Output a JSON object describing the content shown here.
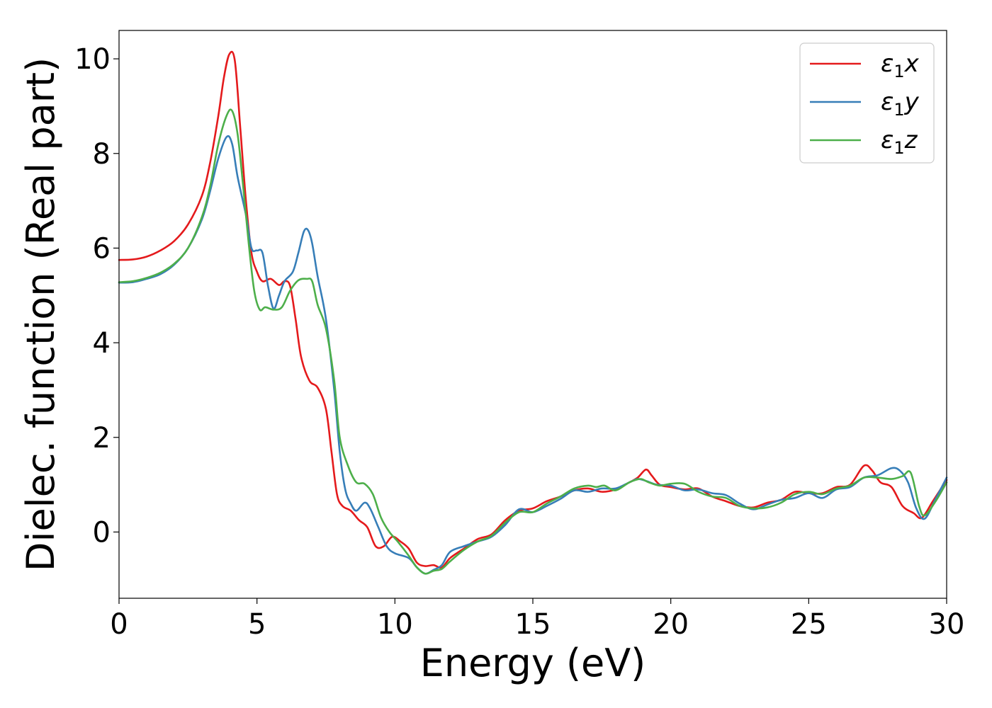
{
  "chart_data": {
    "type": "line",
    "xlabel": "Energy (eV)",
    "ylabel": "Dielec. function (Real part)",
    "xlim": [
      0,
      30
    ],
    "ylim": [
      -1.4,
      10.6
    ],
    "xticks": [
      0,
      5,
      10,
      15,
      20,
      25,
      30
    ],
    "yticks": [
      0,
      2,
      4,
      6,
      8,
      10
    ],
    "grid": false,
    "legend_position": "top-right",
    "series": [
      {
        "name": "ε₁x",
        "legend": {
          "base": "ε",
          "sub": "1",
          "suffix": "x"
        },
        "color": "#e41a1c",
        "points": [
          [
            0,
            5.75
          ],
          [
            0.5,
            5.76
          ],
          [
            1,
            5.82
          ],
          [
            1.5,
            5.95
          ],
          [
            2,
            6.15
          ],
          [
            2.5,
            6.5
          ],
          [
            3,
            7.1
          ],
          [
            3.3,
            7.8
          ],
          [
            3.6,
            8.8
          ],
          [
            3.8,
            9.6
          ],
          [
            4.0,
            10.1
          ],
          [
            4.2,
            9.95
          ],
          [
            4.4,
            8.5
          ],
          [
            4.6,
            7.0
          ],
          [
            4.8,
            5.9
          ],
          [
            5.0,
            5.5
          ],
          [
            5.2,
            5.3
          ],
          [
            5.5,
            5.35
          ],
          [
            5.8,
            5.22
          ],
          [
            6.0,
            5.3
          ],
          [
            6.2,
            5.2
          ],
          [
            6.4,
            4.5
          ],
          [
            6.6,
            3.7
          ],
          [
            6.9,
            3.2
          ],
          [
            7.2,
            3.05
          ],
          [
            7.5,
            2.6
          ],
          [
            7.7,
            1.7
          ],
          [
            7.9,
            0.8
          ],
          [
            8.1,
            0.55
          ],
          [
            8.4,
            0.45
          ],
          [
            8.7,
            0.25
          ],
          [
            9.0,
            0.1
          ],
          [
            9.3,
            -0.3
          ],
          [
            9.6,
            -0.3
          ],
          [
            9.9,
            -0.1
          ],
          [
            10.2,
            -0.2
          ],
          [
            10.5,
            -0.35
          ],
          [
            10.8,
            -0.65
          ],
          [
            11.1,
            -0.72
          ],
          [
            11.4,
            -0.7
          ],
          [
            11.7,
            -0.75
          ],
          [
            12.0,
            -0.55
          ],
          [
            12.5,
            -0.35
          ],
          [
            13.0,
            -0.15
          ],
          [
            13.5,
            -0.05
          ],
          [
            14.0,
            0.25
          ],
          [
            14.5,
            0.45
          ],
          [
            15.0,
            0.5
          ],
          [
            15.5,
            0.65
          ],
          [
            16.0,
            0.75
          ],
          [
            16.5,
            0.88
          ],
          [
            17.0,
            0.92
          ],
          [
            17.5,
            0.85
          ],
          [
            18.0,
            0.9
          ],
          [
            18.5,
            1.05
          ],
          [
            18.8,
            1.15
          ],
          [
            19.1,
            1.32
          ],
          [
            19.3,
            1.2
          ],
          [
            19.6,
            1.0
          ],
          [
            20.0,
            0.95
          ],
          [
            20.5,
            0.9
          ],
          [
            21.0,
            0.92
          ],
          [
            21.5,
            0.75
          ],
          [
            22.0,
            0.65
          ],
          [
            22.5,
            0.55
          ],
          [
            23.0,
            0.52
          ],
          [
            23.5,
            0.62
          ],
          [
            24.0,
            0.68
          ],
          [
            24.5,
            0.85
          ],
          [
            25.0,
            0.82
          ],
          [
            25.5,
            0.82
          ],
          [
            26.0,
            0.95
          ],
          [
            26.5,
            1.0
          ],
          [
            27.0,
            1.4
          ],
          [
            27.3,
            1.3
          ],
          [
            27.6,
            1.05
          ],
          [
            28.0,
            0.95
          ],
          [
            28.4,
            0.55
          ],
          [
            28.8,
            0.4
          ],
          [
            29.1,
            0.3
          ],
          [
            29.5,
            0.65
          ],
          [
            30.0,
            1.1
          ]
        ]
      },
      {
        "name": "ε₁y",
        "legend": {
          "base": "ε",
          "sub": "1",
          "suffix": "y"
        },
        "color": "#377eb8",
        "points": [
          [
            0,
            5.27
          ],
          [
            0.5,
            5.28
          ],
          [
            1,
            5.35
          ],
          [
            1.5,
            5.45
          ],
          [
            2,
            5.65
          ],
          [
            2.5,
            6.0
          ],
          [
            3,
            6.6
          ],
          [
            3.3,
            7.2
          ],
          [
            3.6,
            7.9
          ],
          [
            3.9,
            8.35
          ],
          [
            4.1,
            8.2
          ],
          [
            4.3,
            7.5
          ],
          [
            4.6,
            6.7
          ],
          [
            4.8,
            6.0
          ],
          [
            5.0,
            5.95
          ],
          [
            5.2,
            5.9
          ],
          [
            5.4,
            5.2
          ],
          [
            5.6,
            4.72
          ],
          [
            5.8,
            5.0
          ],
          [
            6.0,
            5.3
          ],
          [
            6.3,
            5.5
          ],
          [
            6.5,
            5.9
          ],
          [
            6.7,
            6.35
          ],
          [
            6.85,
            6.38
          ],
          [
            7.0,
            6.1
          ],
          [
            7.2,
            5.4
          ],
          [
            7.5,
            4.5
          ],
          [
            7.8,
            3.0
          ],
          [
            8.0,
            1.7
          ],
          [
            8.2,
            0.9
          ],
          [
            8.4,
            0.6
          ],
          [
            8.6,
            0.45
          ],
          [
            8.9,
            0.62
          ],
          [
            9.1,
            0.5
          ],
          [
            9.4,
            0.1
          ],
          [
            9.7,
            -0.3
          ],
          [
            10.0,
            -0.45
          ],
          [
            10.5,
            -0.55
          ],
          [
            10.8,
            -0.75
          ],
          [
            11.1,
            -0.88
          ],
          [
            11.4,
            -0.8
          ],
          [
            11.7,
            -0.7
          ],
          [
            12.0,
            -0.42
          ],
          [
            12.5,
            -0.3
          ],
          [
            13.0,
            -0.2
          ],
          [
            13.5,
            -0.1
          ],
          [
            14.0,
            0.15
          ],
          [
            14.5,
            0.48
          ],
          [
            15.0,
            0.42
          ],
          [
            15.5,
            0.55
          ],
          [
            16.0,
            0.7
          ],
          [
            16.5,
            0.88
          ],
          [
            17.0,
            0.85
          ],
          [
            17.5,
            0.92
          ],
          [
            18.0,
            0.92
          ],
          [
            18.5,
            1.05
          ],
          [
            18.8,
            1.12
          ],
          [
            19.1,
            1.08
          ],
          [
            19.5,
            1.0
          ],
          [
            20.0,
            0.98
          ],
          [
            20.5,
            0.88
          ],
          [
            21.0,
            0.9
          ],
          [
            21.5,
            0.82
          ],
          [
            22.0,
            0.78
          ],
          [
            22.5,
            0.6
          ],
          [
            23.0,
            0.48
          ],
          [
            23.5,
            0.58
          ],
          [
            24.0,
            0.68
          ],
          [
            24.5,
            0.72
          ],
          [
            25.0,
            0.82
          ],
          [
            25.5,
            0.72
          ],
          [
            26.0,
            0.9
          ],
          [
            26.5,
            0.95
          ],
          [
            27.0,
            1.15
          ],
          [
            27.5,
            1.2
          ],
          [
            28.0,
            1.35
          ],
          [
            28.3,
            1.3
          ],
          [
            28.6,
            1.05
          ],
          [
            28.9,
            0.5
          ],
          [
            29.2,
            0.28
          ],
          [
            29.6,
            0.7
          ],
          [
            30.0,
            1.15
          ]
        ]
      },
      {
        "name": "ε₁z",
        "legend": {
          "base": "ε",
          "sub": "1",
          "suffix": "z"
        },
        "color": "#4daf4a",
        "points": [
          [
            0,
            5.28
          ],
          [
            0.5,
            5.3
          ],
          [
            1,
            5.37
          ],
          [
            1.5,
            5.48
          ],
          [
            2,
            5.67
          ],
          [
            2.5,
            6.0
          ],
          [
            3,
            6.65
          ],
          [
            3.3,
            7.3
          ],
          [
            3.6,
            8.2
          ],
          [
            3.9,
            8.8
          ],
          [
            4.1,
            8.9
          ],
          [
            4.3,
            8.4
          ],
          [
            4.5,
            7.3
          ],
          [
            4.7,
            6.1
          ],
          [
            4.9,
            5.1
          ],
          [
            5.1,
            4.7
          ],
          [
            5.3,
            4.75
          ],
          [
            5.6,
            4.7
          ],
          [
            5.9,
            4.75
          ],
          [
            6.2,
            5.1
          ],
          [
            6.5,
            5.32
          ],
          [
            6.8,
            5.35
          ],
          [
            7.0,
            5.3
          ],
          [
            7.2,
            4.8
          ],
          [
            7.5,
            4.3
          ],
          [
            7.8,
            3.2
          ],
          [
            8.0,
            2.0
          ],
          [
            8.3,
            1.4
          ],
          [
            8.6,
            1.05
          ],
          [
            8.9,
            1.02
          ],
          [
            9.2,
            0.8
          ],
          [
            9.5,
            0.3
          ],
          [
            9.8,
            0.0
          ],
          [
            10.1,
            -0.2
          ],
          [
            10.5,
            -0.5
          ],
          [
            10.8,
            -0.75
          ],
          [
            11.1,
            -0.88
          ],
          [
            11.4,
            -0.82
          ],
          [
            11.7,
            -0.78
          ],
          [
            12.0,
            -0.62
          ],
          [
            12.5,
            -0.38
          ],
          [
            13.0,
            -0.2
          ],
          [
            13.5,
            -0.08
          ],
          [
            14.0,
            0.2
          ],
          [
            14.5,
            0.42
          ],
          [
            15.0,
            0.42
          ],
          [
            15.5,
            0.6
          ],
          [
            16.0,
            0.75
          ],
          [
            16.5,
            0.92
          ],
          [
            17.0,
            0.98
          ],
          [
            17.3,
            0.95
          ],
          [
            17.6,
            0.98
          ],
          [
            18.0,
            0.88
          ],
          [
            18.5,
            1.05
          ],
          [
            18.9,
            1.12
          ],
          [
            19.2,
            1.05
          ],
          [
            19.6,
            0.98
          ],
          [
            20.0,
            1.02
          ],
          [
            20.5,
            1.02
          ],
          [
            21.0,
            0.85
          ],
          [
            21.5,
            0.75
          ],
          [
            22.0,
            0.72
          ],
          [
            22.5,
            0.55
          ],
          [
            23.0,
            0.5
          ],
          [
            23.5,
            0.52
          ],
          [
            24.0,
            0.62
          ],
          [
            24.5,
            0.8
          ],
          [
            25.0,
            0.85
          ],
          [
            25.5,
            0.8
          ],
          [
            26.0,
            0.92
          ],
          [
            26.5,
            0.98
          ],
          [
            27.0,
            1.15
          ],
          [
            27.5,
            1.15
          ],
          [
            28.0,
            1.12
          ],
          [
            28.4,
            1.18
          ],
          [
            28.7,
            1.25
          ],
          [
            29.0,
            0.55
          ],
          [
            29.2,
            0.35
          ],
          [
            29.6,
            0.65
          ],
          [
            30.0,
            1.05
          ]
        ]
      }
    ]
  }
}
